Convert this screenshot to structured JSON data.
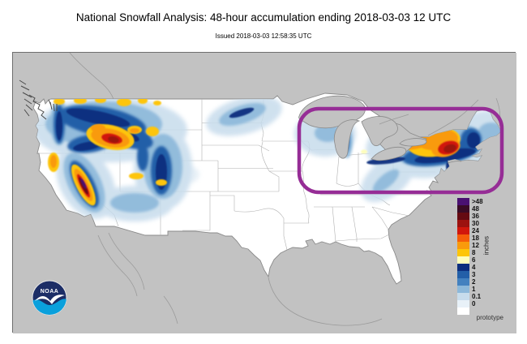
{
  "header": {
    "title": "National Snowfall Analysis: 48-hour accumulation ending 2018-03-03 12 UTC",
    "subtitle": "Issued 2018-03-03 12:58:35 UTC"
  },
  "map": {
    "prototype_label": "prototype",
    "logo_text": "NOAA",
    "colors": {
      "background": "#c2c2c2",
      "land": "#ffffff",
      "coastline": "#8a8a8a",
      "state_border": "#b0b0b0",
      "foreign_border": "#9b9b9b",
      "fjord_detail": "#4a4a4a",
      "highlight_box": "#962d96",
      "logo_navy": "#1c2d66",
      "logo_blue": "#0aa0dc"
    }
  },
  "legend": {
    "unit_label": "inches",
    "entries": [
      {
        "label": ">48",
        "color": "#4a1172"
      },
      {
        "label": "48",
        "color": "#3a0b26"
      },
      {
        "label": "36",
        "color": "#650a12"
      },
      {
        "label": "30",
        "color": "#9c120f"
      },
      {
        "label": "24",
        "color": "#d1170c"
      },
      {
        "label": "18",
        "color": "#f55d09"
      },
      {
        "label": "12",
        "color": "#f99a0c"
      },
      {
        "label": "8",
        "color": "#fdc508"
      },
      {
        "label": "6",
        "color": "#fdfdbb"
      },
      {
        "label": "4",
        "color": "#0d2f7e"
      },
      {
        "label": "3",
        "color": "#235fa8"
      },
      {
        "label": "2",
        "color": "#4381bf"
      },
      {
        "label": "1",
        "color": "#8cb8da"
      },
      {
        "label": "0.1",
        "color": "#c7dcec"
      },
      {
        "label": "0",
        "color": "#e8f1f8"
      },
      {
        "label": "",
        "color": "#ffffff"
      }
    ]
  }
}
